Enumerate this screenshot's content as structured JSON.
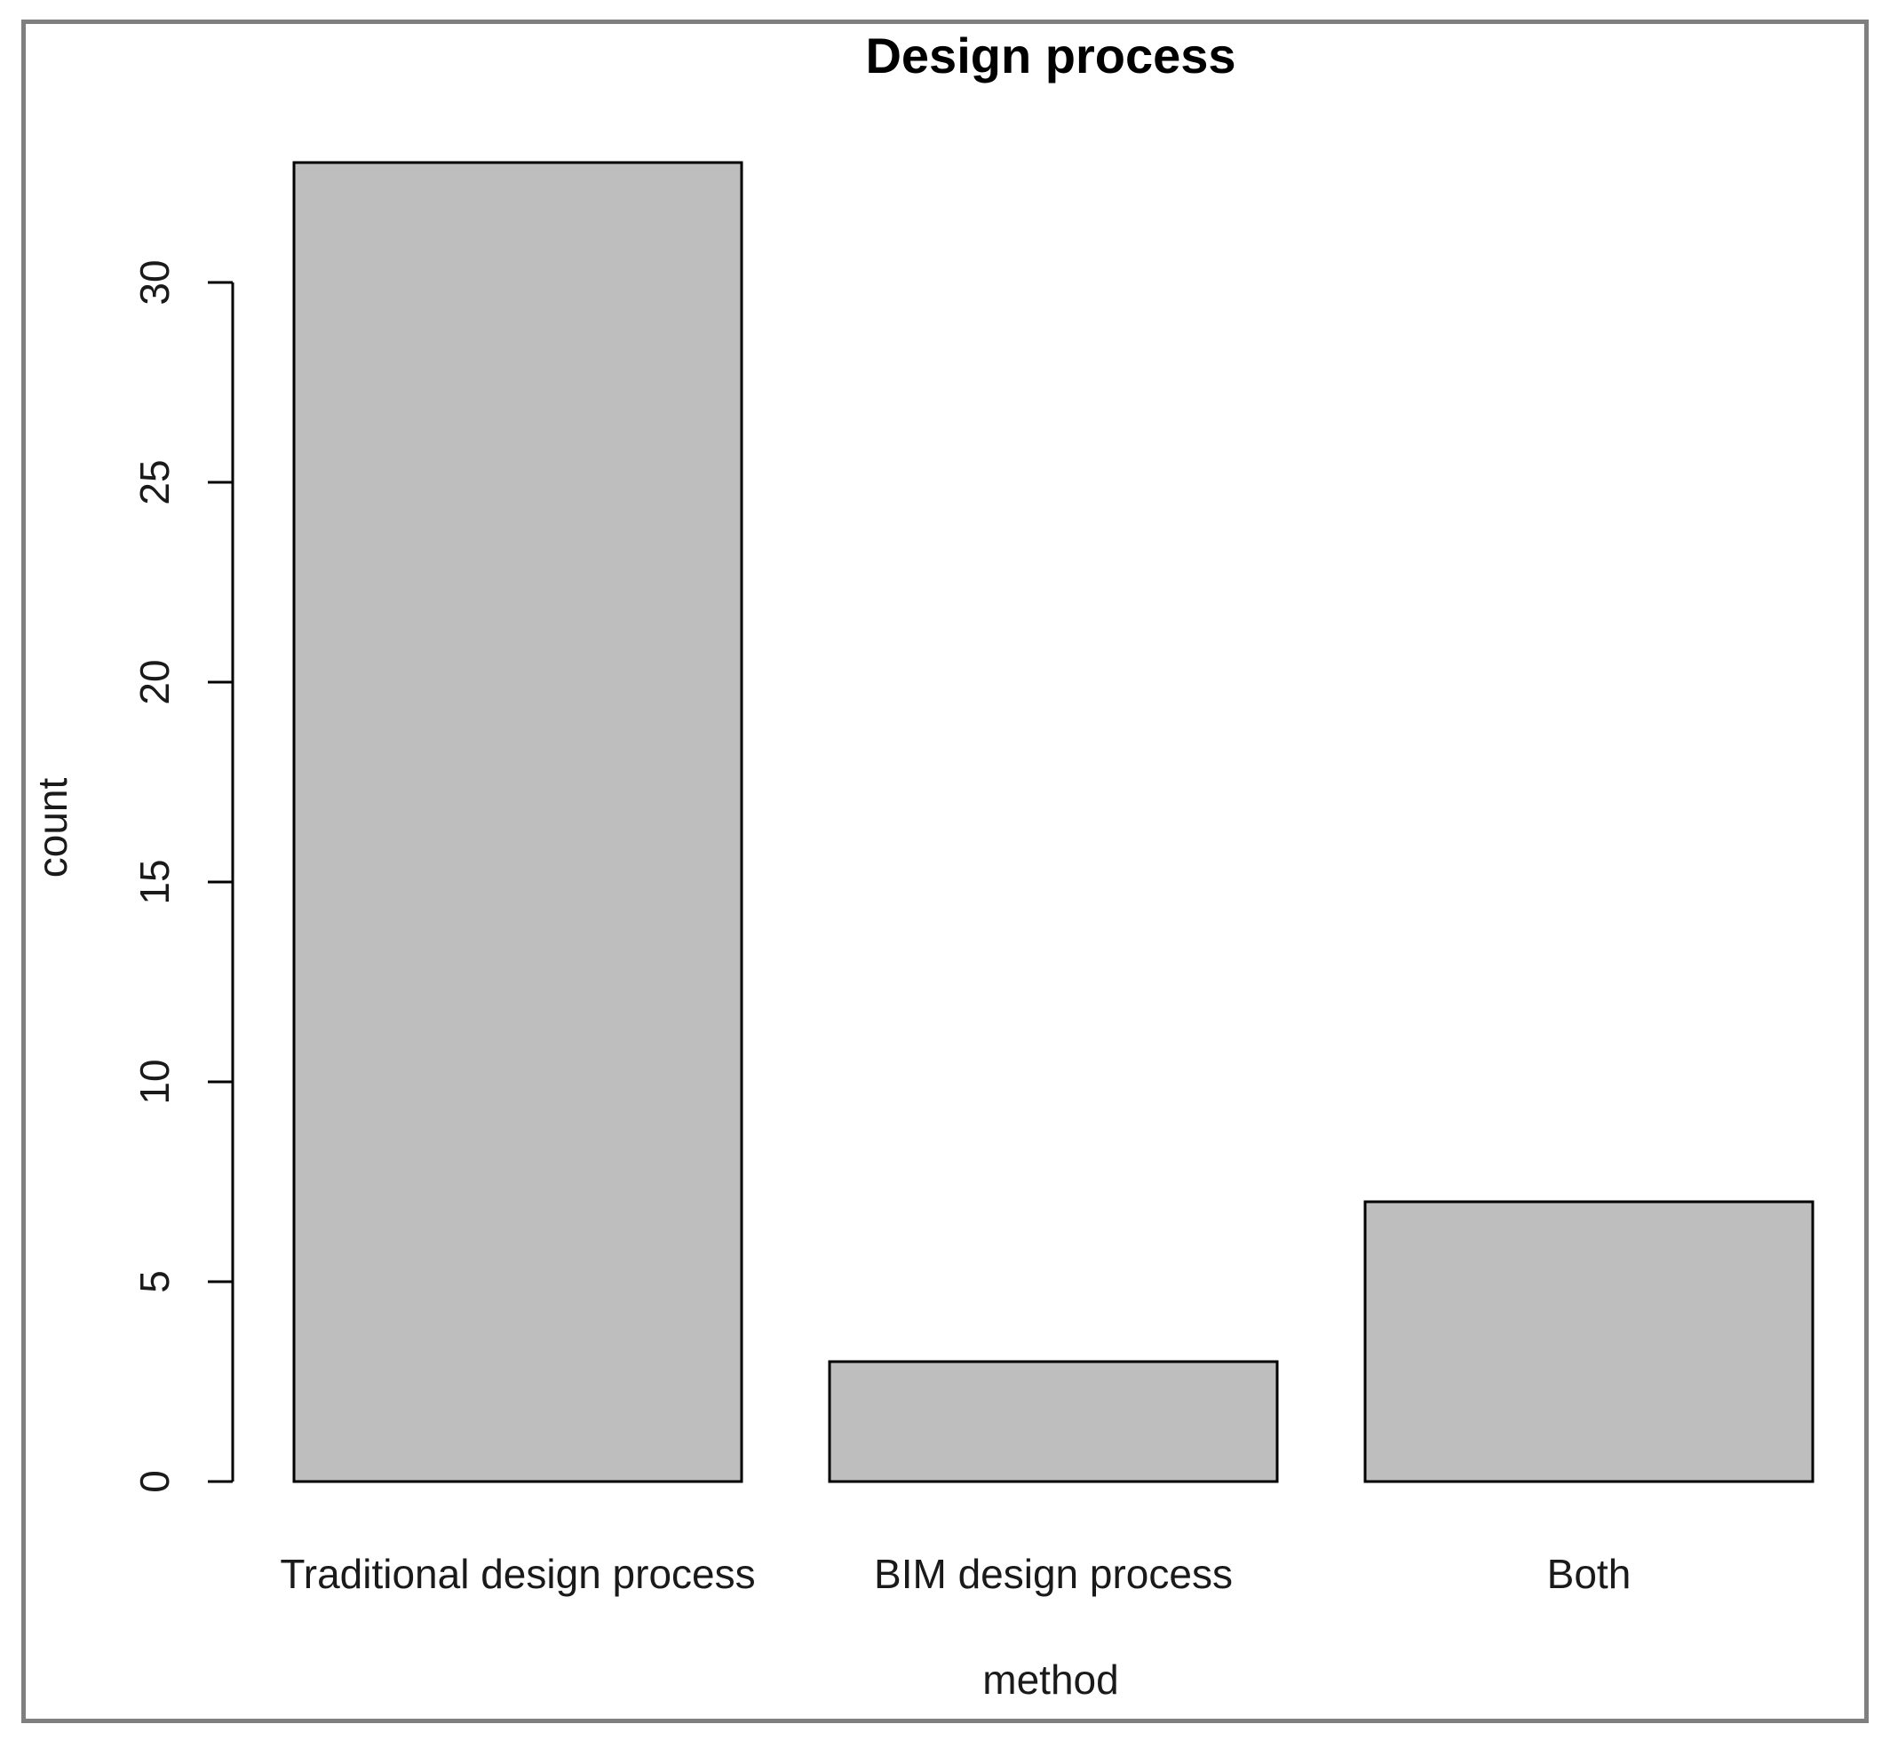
{
  "chart_data": {
    "type": "bar",
    "title": "Design process",
    "xlabel": "method",
    "ylabel": "count",
    "categories": [
      "Traditional design process",
      "BIM design process",
      "Both"
    ],
    "values": [
      33,
      3,
      7
    ],
    "ylim": [
      0,
      33
    ],
    "yticks": [
      0,
      5,
      10,
      15,
      20,
      25,
      30
    ],
    "grid": false,
    "colors": {
      "bar_fill": "#bebebe",
      "bar_stroke": "#000000",
      "frame": "#7f7f7f"
    }
  }
}
